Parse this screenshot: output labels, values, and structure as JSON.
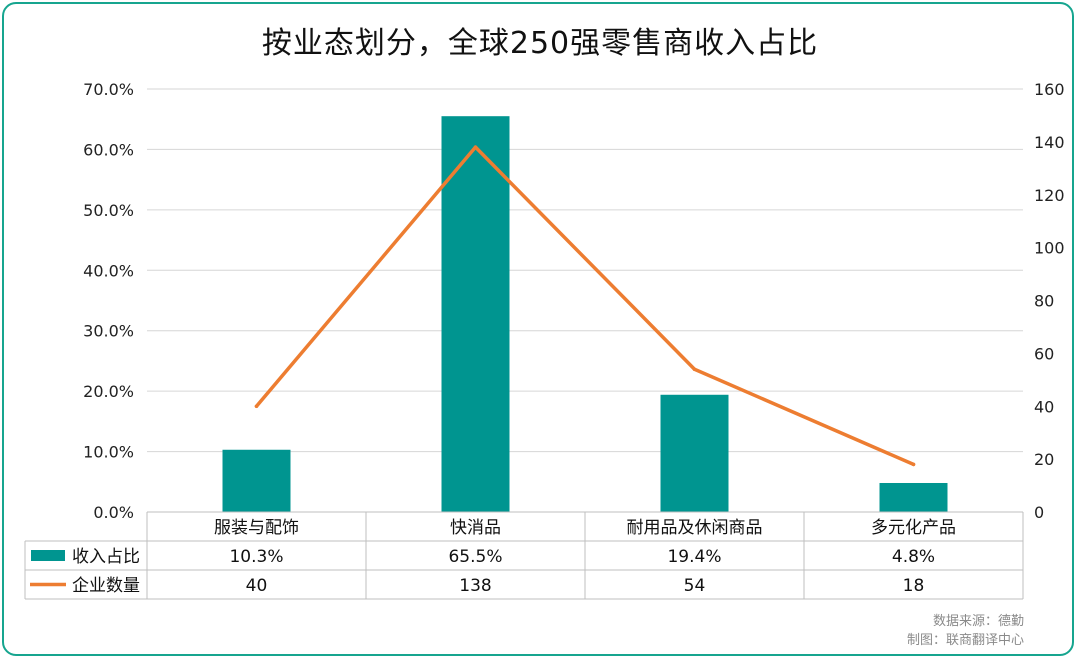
{
  "chart_data": {
    "type": "bar",
    "title": "按业态划分，全球250强零售商收入占比",
    "categories": [
      "服装与配饰",
      "快消品",
      "耐用品及休闲商品",
      "多元化产品"
    ],
    "series": [
      {
        "name": "收入占比",
        "type": "bar",
        "axis": "left",
        "color": "#009590",
        "values": [
          10.3,
          65.5,
          19.4,
          4.8
        ],
        "labels": [
          "10.3%",
          "65.5%",
          "19.4%",
          "4.8%"
        ]
      },
      {
        "name": "企业数量",
        "type": "line",
        "axis": "right",
        "color": "#ed7d31",
        "values": [
          40,
          138,
          54,
          18
        ],
        "labels": [
          "40",
          "138",
          "54",
          "18"
        ]
      }
    ],
    "y_left": {
      "range": [
        0,
        70
      ],
      "ticks": [
        "0.0%",
        "10.0%",
        "20.0%",
        "30.0%",
        "40.0%",
        "50.0%",
        "60.0%",
        "70.0%"
      ]
    },
    "y_right": {
      "range": [
        0,
        160
      ],
      "ticks": [
        "0",
        "20",
        "40",
        "60",
        "80",
        "100",
        "120",
        "140",
        "160"
      ]
    },
    "grid": true,
    "legend": "data-table"
  },
  "source": {
    "line1": "数据来源：德勤",
    "line2": "制图：联商翻译中心"
  }
}
